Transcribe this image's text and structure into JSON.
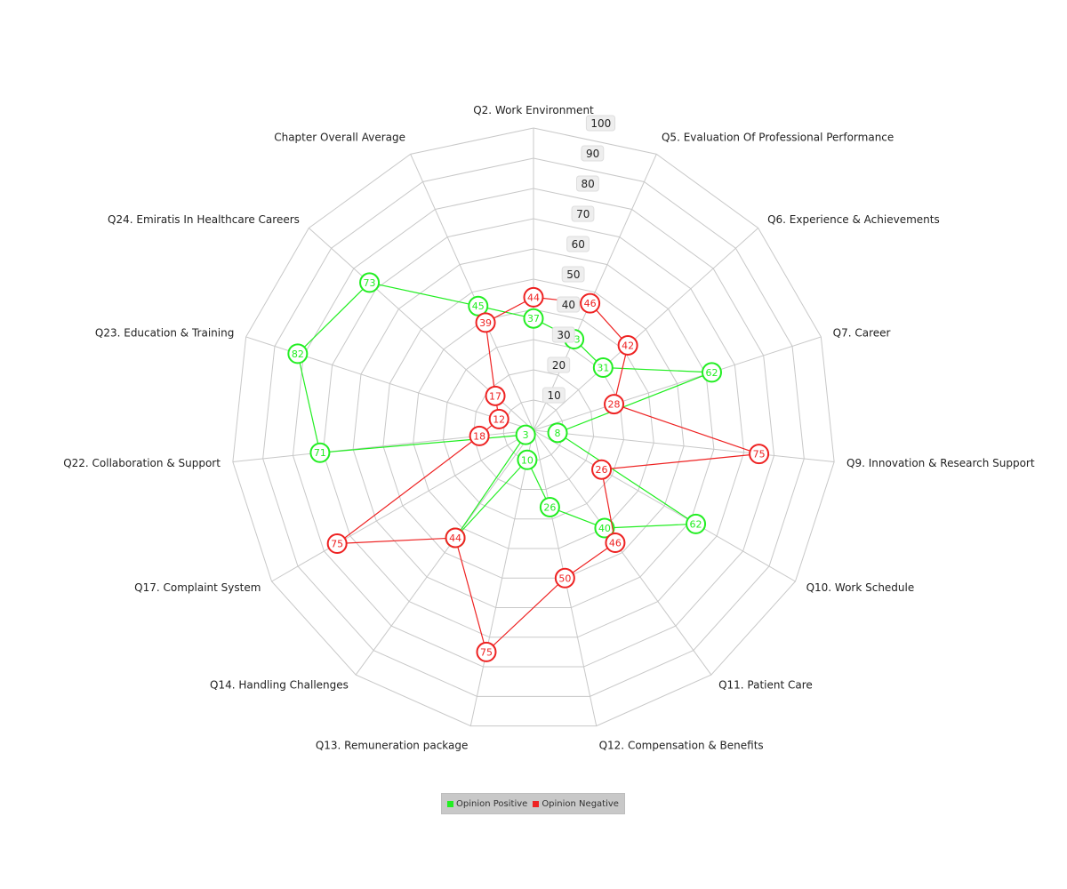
{
  "chart_data": {
    "type": "radar",
    "categories": [
      "Q2. Work Environment",
      "Q5. Evaluation Of Professional Performance",
      "Q6. Experience & Achievements",
      "Q7. Career",
      "Q9. Innovation & Research Support",
      "Q10. Work Schedule",
      "Q11. Patient Care",
      "Q12. Compensation & Benefits",
      "Q13. Remuneration package",
      "Q14. Handling Challenges",
      "Q17. Complaint System",
      "Q22. Collaboration & Support",
      "Q23. Education & Training",
      "Q24. Emiratis In Healthcare Careers",
      "Chapter Overall Average"
    ],
    "ticks": [
      10,
      20,
      30,
      40,
      50,
      60,
      70,
      80,
      90,
      100
    ],
    "ylim": [
      0,
      100
    ],
    "series": [
      {
        "name": "Opinion Positive",
        "color": "#22ee22",
        "values": [
          37,
          33,
          31,
          62,
          8,
          62,
          40,
          26,
          10,
          44,
          3,
          71,
          82,
          73,
          45
        ]
      },
      {
        "name": "Opinion Negative",
        "color": "#ee2222",
        "values": [
          44,
          46,
          42,
          28,
          75,
          26,
          46,
          50,
          75,
          44,
          75,
          18,
          12,
          17,
          39
        ]
      }
    ],
    "legend_position": "bottom-center",
    "grid": true
  }
}
